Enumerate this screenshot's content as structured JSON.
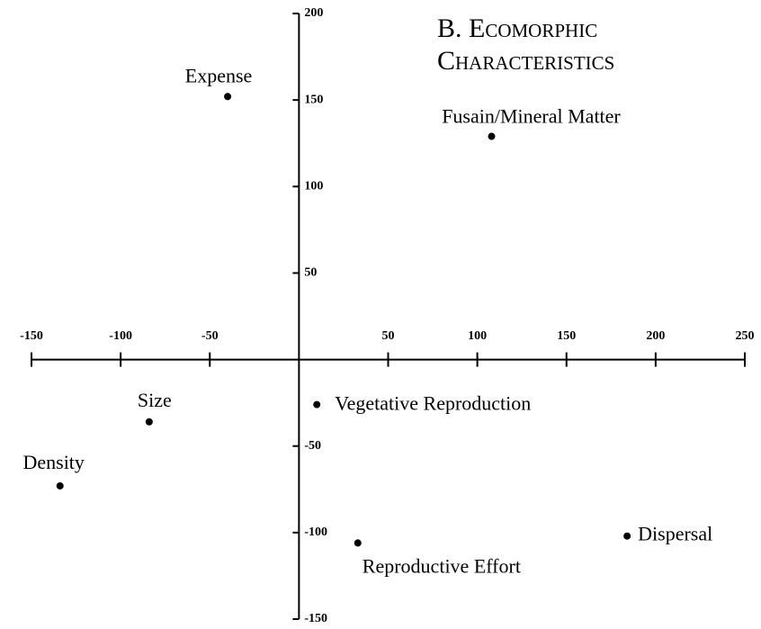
{
  "chart_data": {
    "type": "scatter",
    "title": "B. Ecomorphic Characteristics",
    "x": [
      -40,
      108,
      10,
      -84,
      -134,
      33,
      184
    ],
    "values": [
      152,
      129,
      -26,
      -36,
      -73,
      -106,
      -102
    ],
    "labels": [
      "Expense",
      "Fusain/Mineral Matter",
      "Vegetative Reproduction",
      "Size",
      "Density",
      "Reproductive Effort",
      "Dispersal"
    ],
    "color": "#000000",
    "xlim": [
      -150,
      250
    ],
    "ylim": [
      -150,
      200
    ],
    "xticks": [
      -150,
      -100,
      -50,
      50,
      100,
      150,
      200,
      250
    ],
    "yticks": [
      -150,
      -100,
      -50,
      50,
      100,
      150,
      200
    ],
    "grid": false
  }
}
